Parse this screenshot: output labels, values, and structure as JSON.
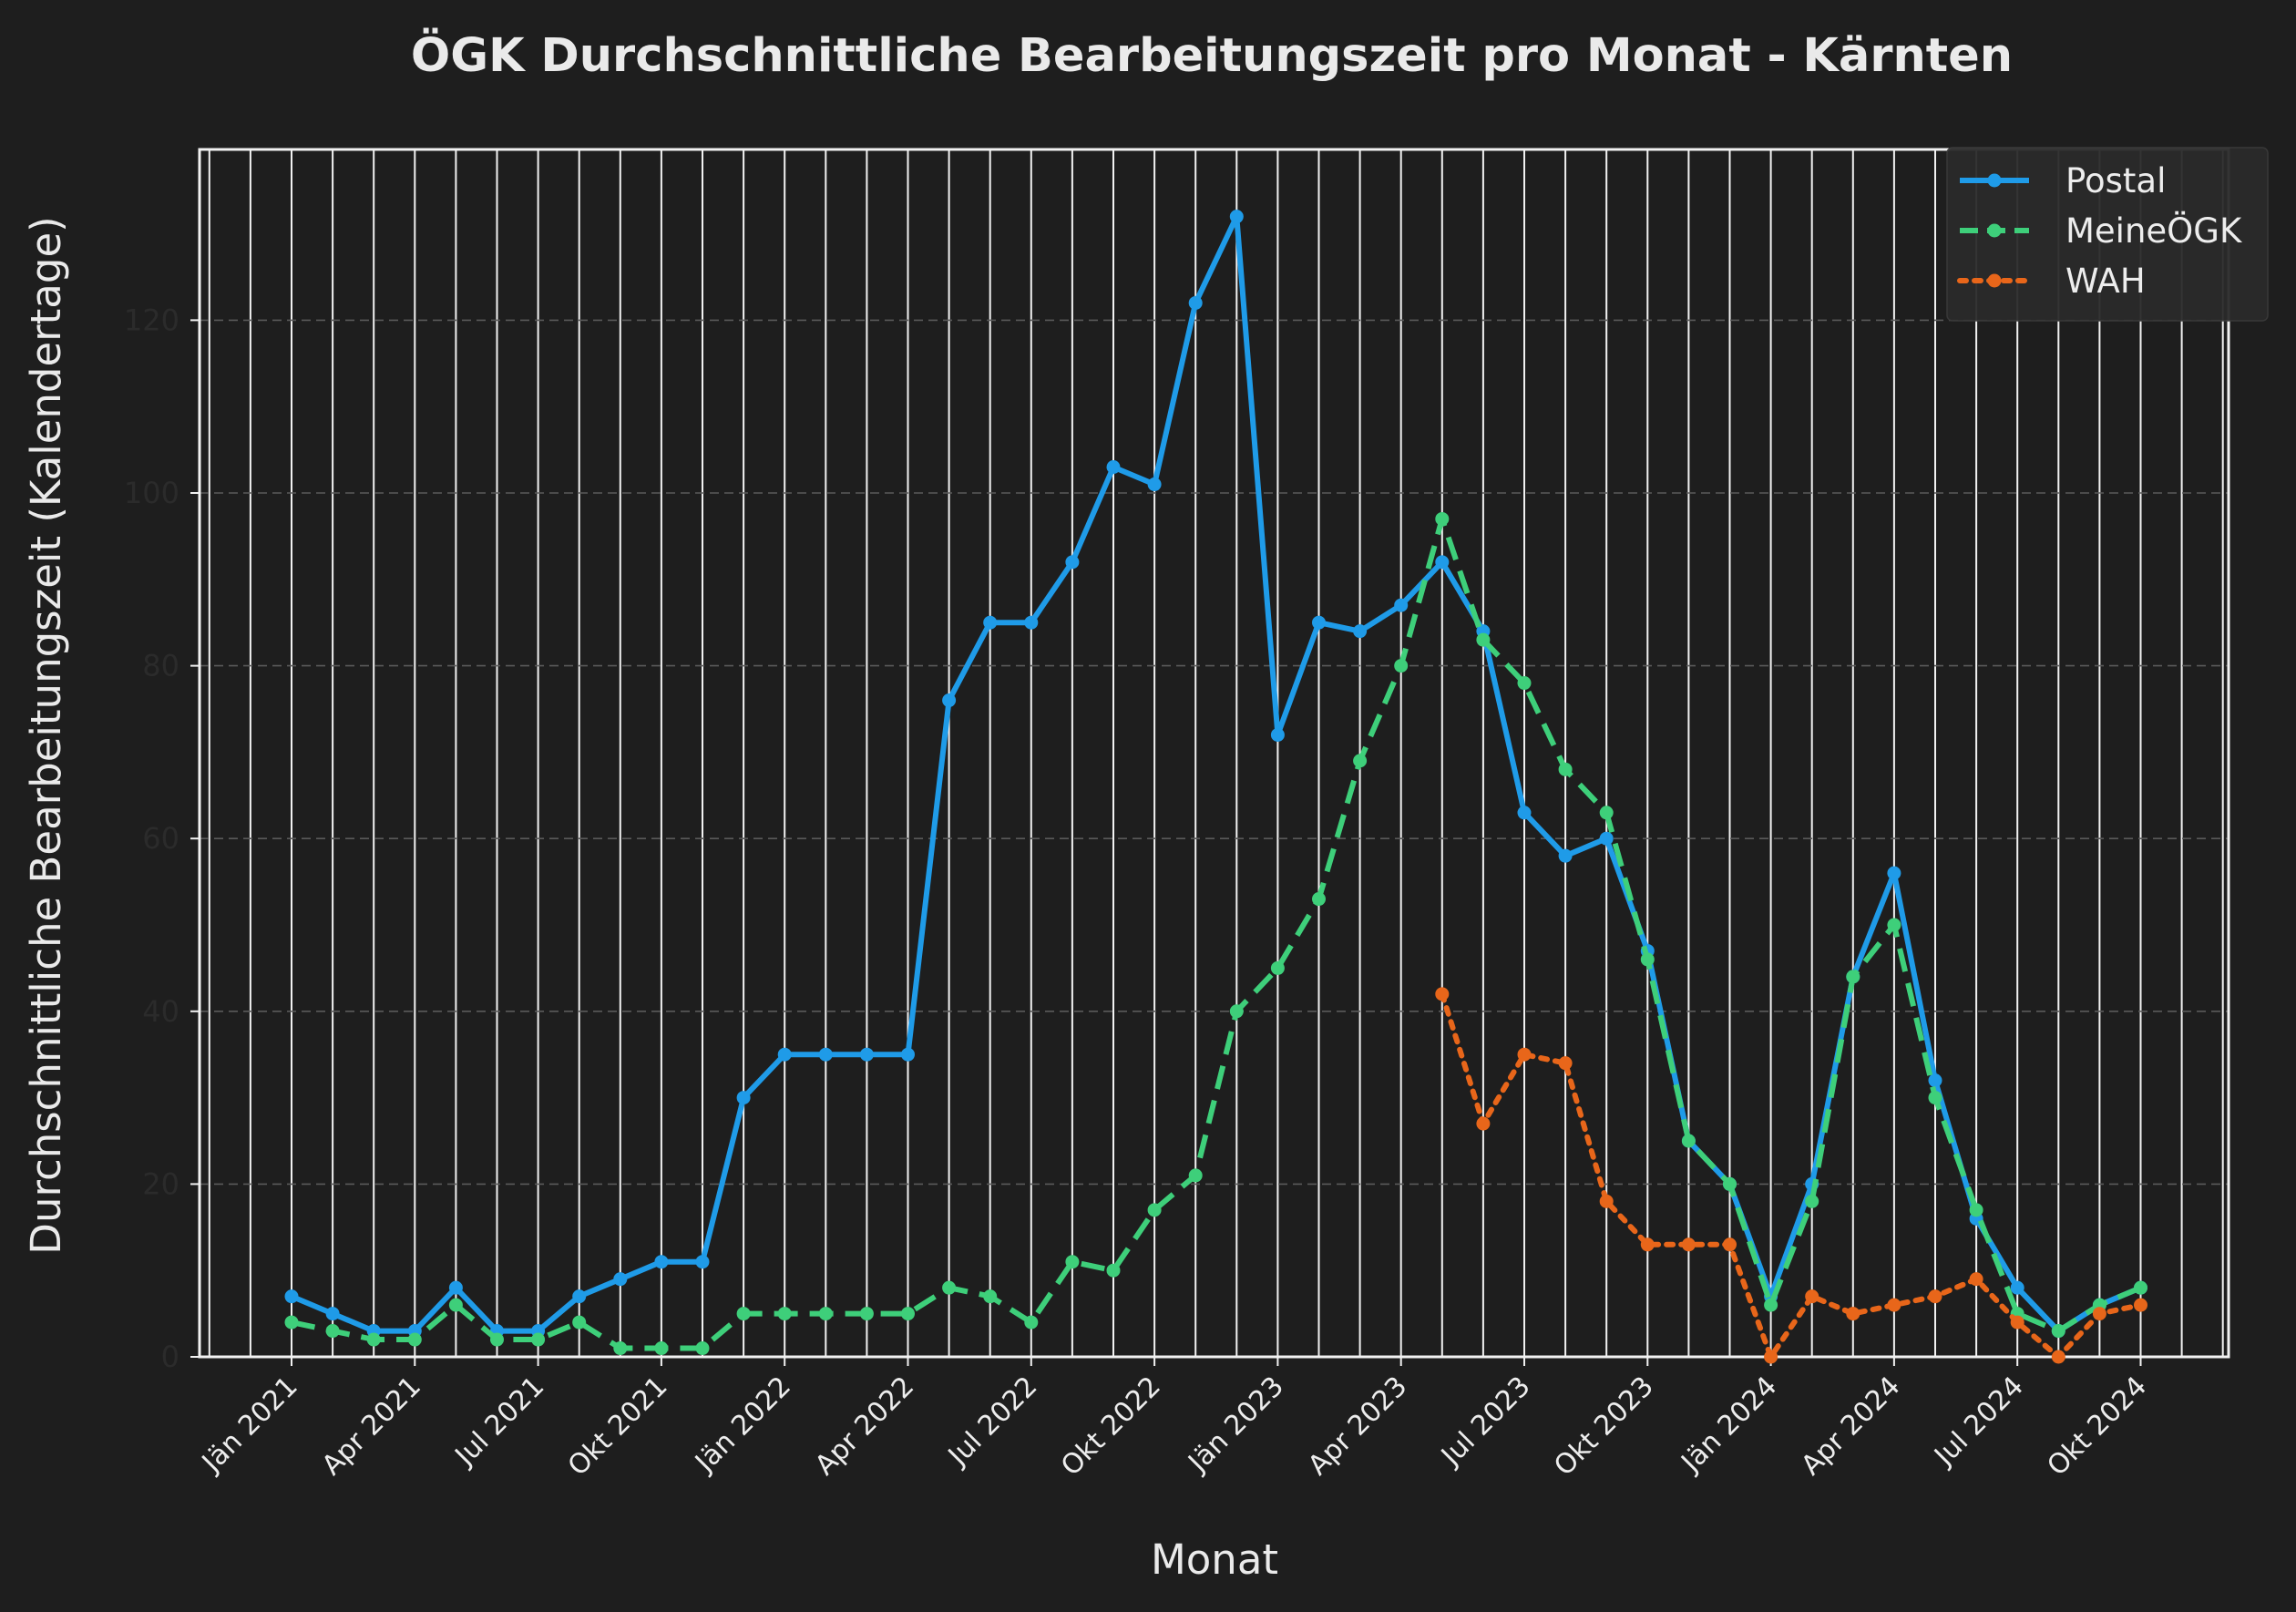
{
  "chart_data": {
    "type": "line",
    "title": "ÖGK Durchschnittliche Bearbeitungszeit pro Monat - Kärnten",
    "xlabel": "Monat",
    "ylabel": "Durchschnittliche Bearbeitungszeit (Kalendertage)",
    "ylim": [
      0,
      133
    ],
    "yticks": [
      0,
      20,
      40,
      60,
      80,
      100,
      120
    ],
    "x": [
      "2021-01",
      "2021-02",
      "2021-03",
      "2021-04",
      "2021-05",
      "2021-06",
      "2021-07",
      "2021-08",
      "2021-09",
      "2021-10",
      "2021-11",
      "2021-12",
      "2022-01",
      "2022-02",
      "2022-03",
      "2022-04",
      "2022-05",
      "2022-06",
      "2022-07",
      "2022-08",
      "2022-09",
      "2022-10",
      "2022-11",
      "2022-12",
      "2023-01",
      "2023-02",
      "2023-03",
      "2023-04",
      "2023-05",
      "2023-06",
      "2023-07",
      "2023-08",
      "2023-09",
      "2023-10",
      "2023-11",
      "2023-12",
      "2024-01",
      "2024-02",
      "2024-03",
      "2024-04",
      "2024-05",
      "2024-06",
      "2024-07",
      "2024-08",
      "2024-09",
      "2024-10"
    ],
    "xticks": [
      "Jän 2021",
      "Apr 2021",
      "Jul 2021",
      "Okt 2021",
      "Jän 2022",
      "Apr 2022",
      "Jul 2022",
      "Okt 2022",
      "Jän 2023",
      "Apr 2023",
      "Jul 2023",
      "Okt 2023",
      "Jän 2024",
      "Apr 2024",
      "Jul 2024",
      "Okt 2024"
    ],
    "grid": "vertical monthly lines, dashed horizontal at y ticks",
    "legend": "top-right",
    "series": [
      {
        "name": "Postal",
        "color": "#1f9be8",
        "style": "solid",
        "values": [
          7,
          5,
          3,
          3,
          8,
          3,
          3,
          7,
          9,
          11,
          11,
          30,
          35,
          35,
          35,
          35,
          76,
          85,
          85,
          92,
          103,
          101,
          122,
          132,
          72,
          85,
          84,
          87,
          92,
          84,
          63,
          58,
          60,
          47,
          25,
          20,
          7,
          20,
          44,
          56,
          32,
          16,
          8,
          3,
          6,
          8
        ]
      },
      {
        "name": "MeineÖGK",
        "color": "#3ecf7a",
        "style": "dashed",
        "values": [
          4,
          3,
          2,
          2,
          6,
          2,
          2,
          4,
          1,
          1,
          1,
          5,
          5,
          5,
          5,
          5,
          8,
          7,
          4,
          11,
          10,
          17,
          21,
          40,
          45,
          53,
          69,
          80,
          97,
          83,
          78,
          68,
          63,
          46,
          25,
          20,
          6,
          18,
          44,
          50,
          30,
          17,
          5,
          3,
          6,
          8
        ]
      },
      {
        "name": "WAH",
        "color": "#e8661a",
        "style": "dotted",
        "values": [
          null,
          null,
          null,
          null,
          null,
          null,
          null,
          null,
          null,
          null,
          null,
          null,
          null,
          null,
          null,
          null,
          null,
          null,
          null,
          null,
          null,
          null,
          null,
          null,
          null,
          null,
          null,
          null,
          42,
          27,
          35,
          34,
          18,
          13,
          13,
          13,
          0,
          7,
          5,
          6,
          7,
          9,
          4,
          0,
          5,
          6
        ]
      }
    ]
  }
}
